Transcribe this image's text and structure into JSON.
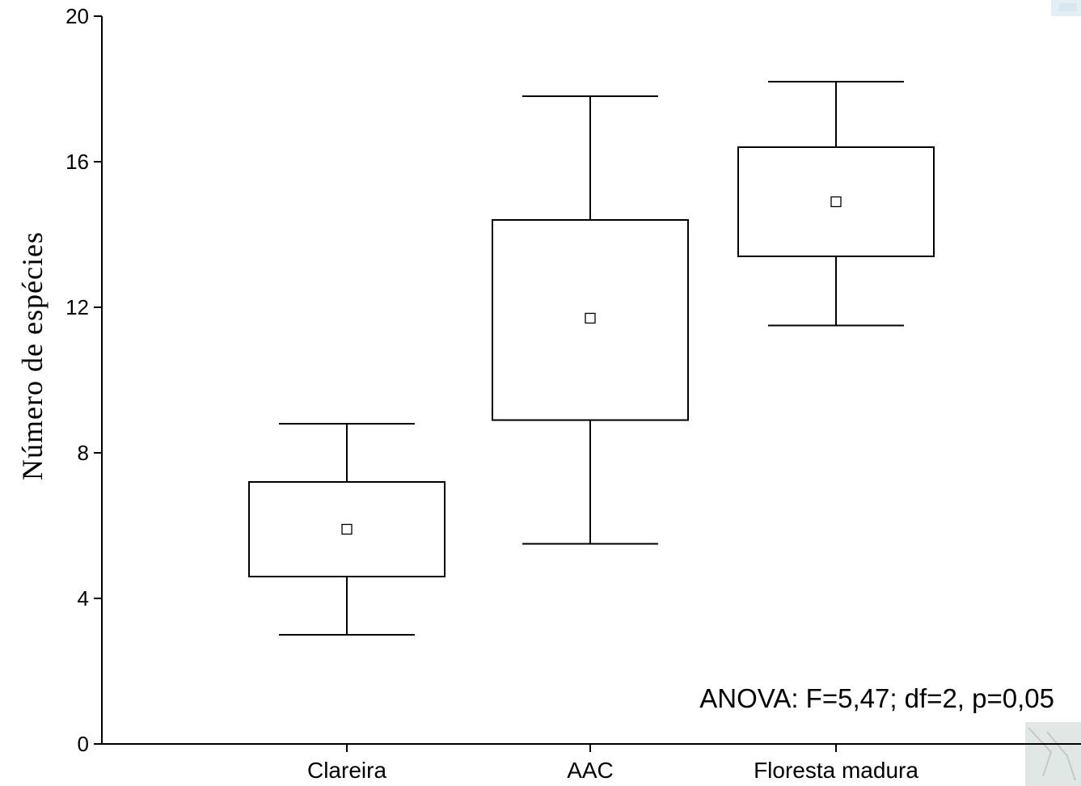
{
  "chart_data": {
    "type": "box",
    "title": "",
    "xlabel": "",
    "ylabel": "Número de espécies",
    "ylim": [
      0,
      20
    ],
    "yticks": [
      0,
      4,
      8,
      12,
      16,
      20
    ],
    "categories": [
      "Clareira",
      "AAC",
      "Floresta madura"
    ],
    "boxes": [
      {
        "category": "Clareira",
        "whisker_low": 3.0,
        "box_low": 4.6,
        "center": 5.9,
        "box_high": 7.2,
        "whisker_high": 8.8
      },
      {
        "category": "AAC",
        "whisker_low": 5.5,
        "box_low": 8.9,
        "center": 11.7,
        "box_high": 14.4,
        "whisker_high": 17.8
      },
      {
        "category": "Floresta madura",
        "whisker_low": 11.5,
        "box_low": 13.4,
        "center": 14.9,
        "box_high": 16.4,
        "whisker_high": 18.2
      }
    ],
    "annotation": "ANOVA: F=5,47; df=2, p=0,05",
    "grid": false,
    "legend": "none"
  }
}
